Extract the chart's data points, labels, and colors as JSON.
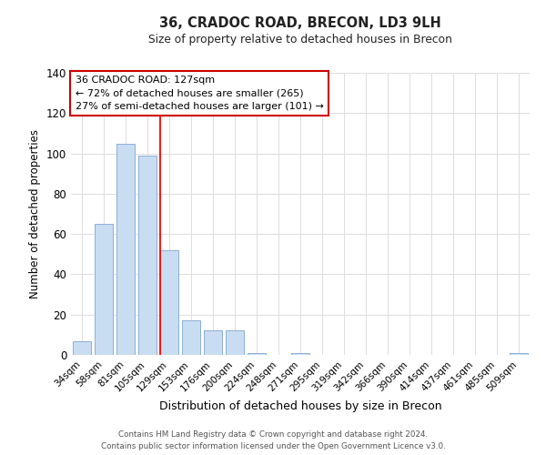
{
  "title": "36, CRADOC ROAD, BRECON, LD3 9LH",
  "subtitle": "Size of property relative to detached houses in Brecon",
  "xlabel": "Distribution of detached houses by size in Brecon",
  "ylabel": "Number of detached properties",
  "bar_labels": [
    "34sqm",
    "58sqm",
    "81sqm",
    "105sqm",
    "129sqm",
    "153sqm",
    "176sqm",
    "200sqm",
    "224sqm",
    "248sqm",
    "271sqm",
    "295sqm",
    "319sqm",
    "342sqm",
    "366sqm",
    "390sqm",
    "414sqm",
    "437sqm",
    "461sqm",
    "485sqm",
    "509sqm"
  ],
  "bar_values": [
    7,
    65,
    105,
    99,
    52,
    17,
    12,
    12,
    1,
    0,
    1,
    0,
    0,
    0,
    0,
    0,
    0,
    0,
    0,
    0,
    1
  ],
  "bar_color": "#c9ddf2",
  "bar_edge_color": "#8bafd4",
  "ylim": [
    0,
    140
  ],
  "yticks": [
    0,
    20,
    40,
    60,
    80,
    100,
    120,
    140
  ],
  "redline_index": 4,
  "annotation_title": "36 CRADOC ROAD: 127sqm",
  "annotation_line1": "← 72% of detached houses are smaller (265)",
  "annotation_line2": "27% of semi-detached houses are larger (101) →",
  "footer1": "Contains HM Land Registry data © Crown copyright and database right 2024.",
  "footer2": "Contains public sector information licensed under the Open Government Licence v3.0.",
  "bg_color": "#ffffff",
  "grid_color": "#dddddd"
}
